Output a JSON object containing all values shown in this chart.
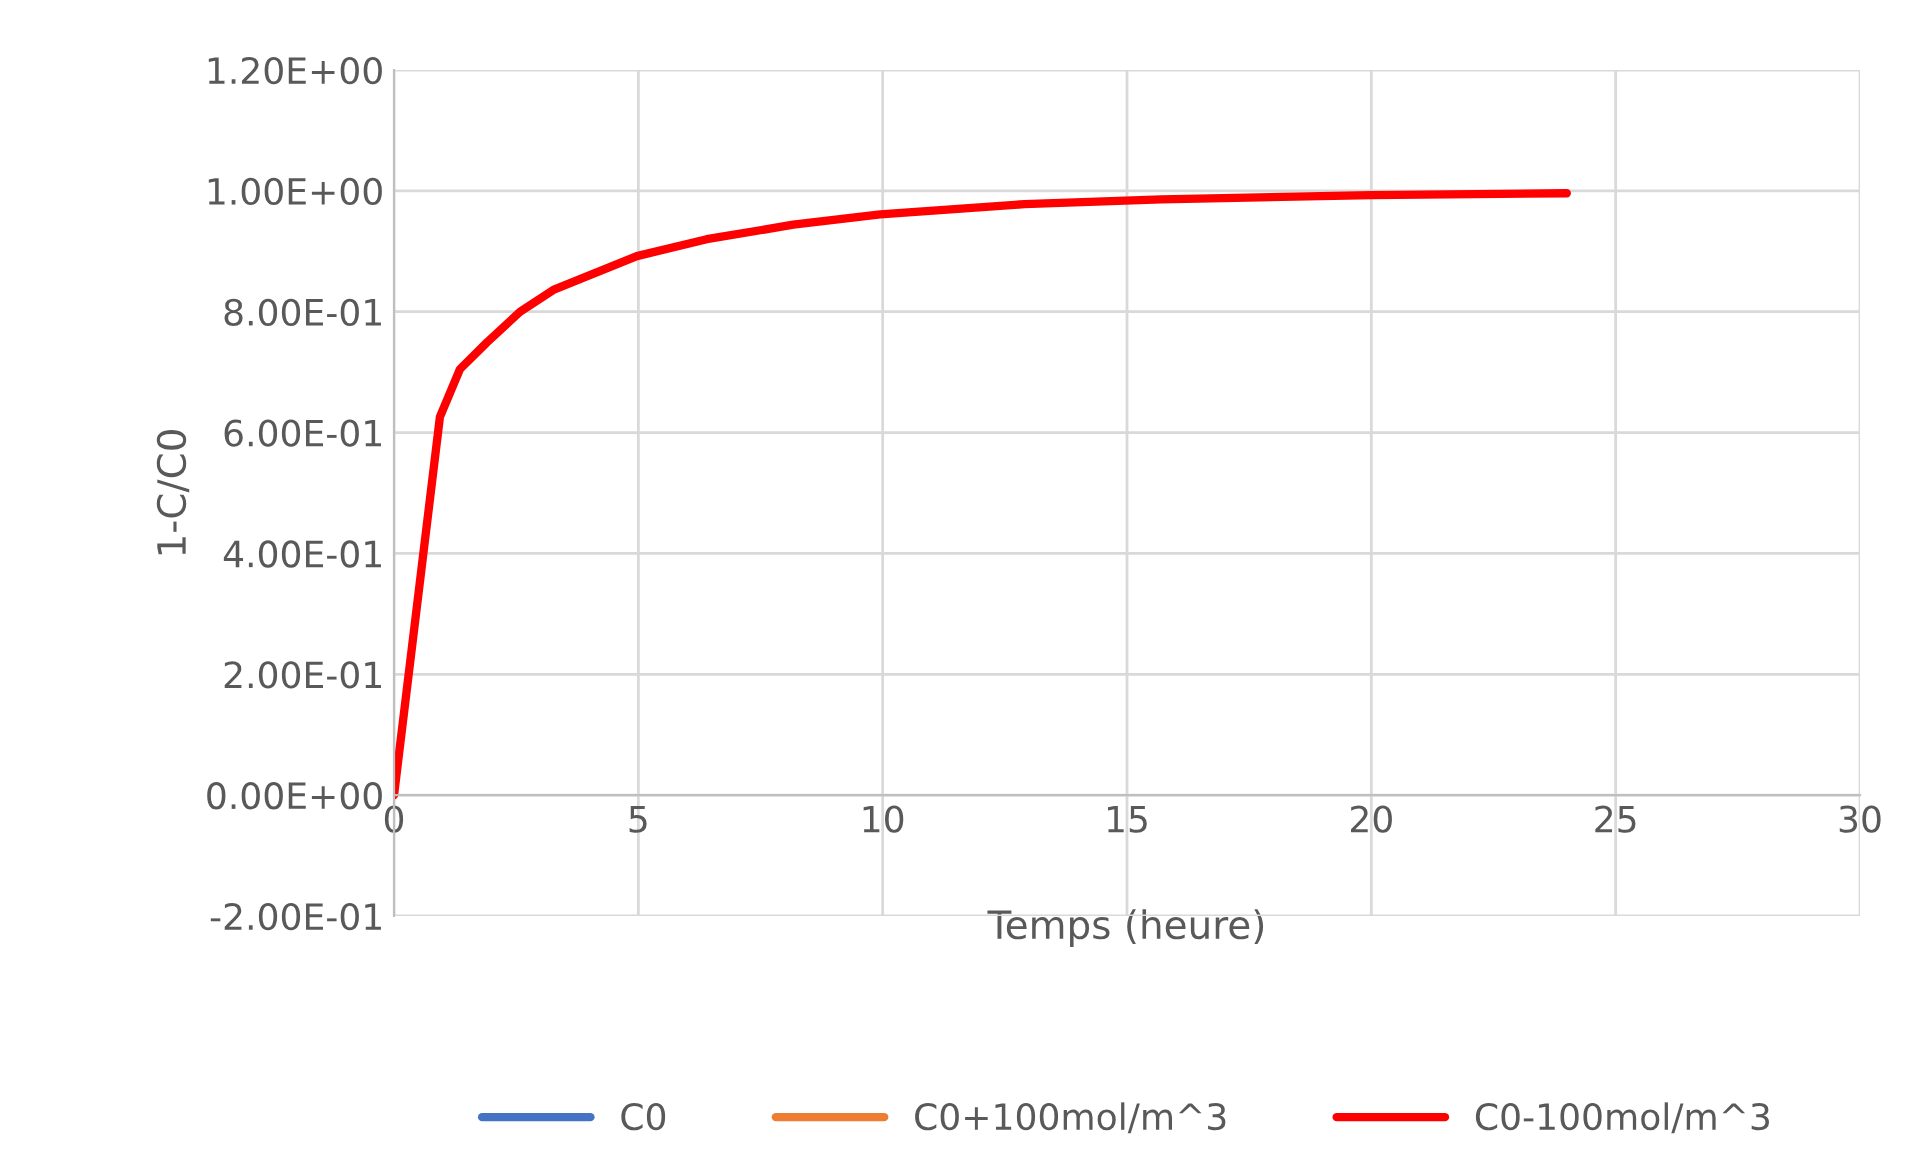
{
  "chart_data": {
    "type": "line",
    "xlabel": "Temps (heure)",
    "ylabel": "1-C/C0",
    "x": [
      0,
      0.94,
      1.35,
      1.9,
      2.58,
      3.26,
      4.97,
      6.4,
      8.17,
      9.95,
      12.9,
      15.7,
      20,
      24
    ],
    "series": [
      {
        "name": "C0",
        "color": "#4472c4",
        "values": [
          null,
          null,
          null,
          null,
          null,
          null,
          null,
          null,
          null,
          null,
          null,
          null,
          null,
          null
        ]
      },
      {
        "name": "C0+100mol/m^3",
        "color": "#ed7d31",
        "values": [
          null,
          null,
          null,
          null,
          null,
          null,
          null,
          null,
          null,
          null,
          null,
          null,
          null,
          null
        ]
      },
      {
        "name": "C0-100mol/m^3",
        "color": "#ff0000",
        "values": [
          0,
          0.626,
          0.705,
          0.749,
          0.8,
          0.836,
          0.892,
          0.92,
          0.944,
          0.961,
          0.978,
          0.986,
          0.993,
          0.996
        ]
      }
    ],
    "xlim": [
      0,
      30
    ],
    "xticks": [
      0,
      5,
      10,
      15,
      20,
      25,
      30
    ],
    "ylim": [
      -0.2,
      1.2
    ],
    "yticks": [
      {
        "value": -0.2,
        "label": "-2.00E-01"
      },
      {
        "value": 0,
        "label": "0.00E+00"
      },
      {
        "value": 0.2,
        "label": "2.00E-01"
      },
      {
        "value": 0.4,
        "label": "4.00E-01"
      },
      {
        "value": 0.6,
        "label": "6.00E-01"
      },
      {
        "value": 0.8,
        "label": "8.00E-01"
      },
      {
        "value": 1.0,
        "label": "1.00E+00"
      },
      {
        "value": 1.2,
        "label": "1.20E+00"
      }
    ],
    "grid": true,
    "legend": "bottom",
    "marker": "none",
    "line_style": "solid"
  }
}
